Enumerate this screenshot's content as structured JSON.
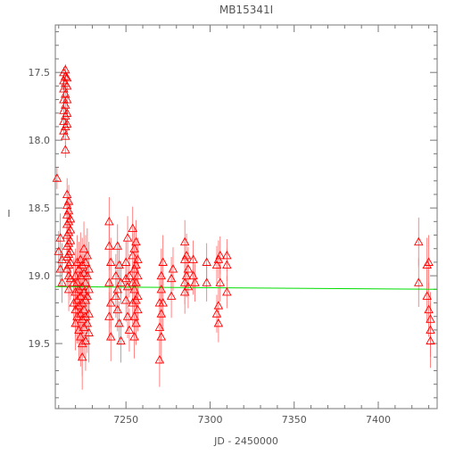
{
  "chart_data": {
    "type": "scatter",
    "title": "MB15341I",
    "xlabel": "JD - 2450000",
    "ylabel": "I",
    "xlim": [
      7208,
      7435
    ],
    "ylim": [
      19.98,
      17.15
    ],
    "y_inverted": true,
    "x_ticks": [
      7250,
      7300,
      7350,
      7400
    ],
    "x_tick_labels": [
      "7250",
      "7300",
      "7350",
      "7400"
    ],
    "y_ticks": [
      17.5,
      18.0,
      18.5,
      19.0,
      19.5
    ],
    "y_tick_labels": [
      "17.5",
      "18.0",
      "18.5",
      "19.0",
      "19.5"
    ],
    "grid": false,
    "marker": "open-triangle",
    "colors": {
      "points": "#ff0000",
      "errorbars": "#ff6666",
      "fit": "#00dd00",
      "axes": "#777777"
    },
    "fit_line": {
      "x": [
        7208,
        7435
      ],
      "y": [
        19.08,
        19.1
      ]
    },
    "series": [
      {
        "points": [
          [
            7209,
            18.28,
            0.08
          ],
          [
            7210,
            18.82,
            0.15
          ],
          [
            7211,
            18.72,
            0.18
          ],
          [
            7211,
            18.95,
            0.12
          ],
          [
            7212,
            19.05,
            0.15
          ],
          [
            7212,
            18.88,
            0.12
          ],
          [
            7213,
            17.5,
            0.04
          ],
          [
            7213,
            17.56,
            0.05
          ],
          [
            7213,
            17.62,
            0.05
          ],
          [
            7213,
            17.7,
            0.06
          ],
          [
            7213,
            17.78,
            0.06
          ],
          [
            7213,
            17.86,
            0.06
          ],
          [
            7213,
            17.93,
            0.06
          ],
          [
            7214,
            17.48,
            0.04
          ],
          [
            7214,
            17.53,
            0.04
          ],
          [
            7214,
            17.58,
            0.05
          ],
          [
            7214,
            17.66,
            0.05
          ],
          [
            7214,
            17.74,
            0.05
          ],
          [
            7214,
            17.82,
            0.06
          ],
          [
            7214,
            17.9,
            0.06
          ],
          [
            7214,
            17.97,
            0.06
          ],
          [
            7214,
            18.07,
            0.06
          ],
          [
            7215,
            17.54,
            0.05
          ],
          [
            7215,
            17.6,
            0.05
          ],
          [
            7215,
            17.7,
            0.05
          ],
          [
            7215,
            17.8,
            0.06
          ],
          [
            7215,
            17.88,
            0.06
          ],
          [
            7215,
            18.4,
            0.12
          ],
          [
            7215,
            18.48,
            0.12
          ],
          [
            7215,
            18.55,
            0.12
          ],
          [
            7215,
            18.62,
            0.13
          ],
          [
            7215,
            18.7,
            0.13
          ],
          [
            7215,
            18.78,
            0.14
          ],
          [
            7215,
            18.86,
            0.14
          ],
          [
            7215,
            18.95,
            0.15
          ],
          [
            7216,
            18.45,
            0.12
          ],
          [
            7216,
            18.52,
            0.12
          ],
          [
            7216,
            18.6,
            0.13
          ],
          [
            7216,
            18.68,
            0.13
          ],
          [
            7216,
            18.76,
            0.14
          ],
          [
            7216,
            18.84,
            0.14
          ],
          [
            7216,
            18.92,
            0.15
          ],
          [
            7216,
            19.0,
            0.15
          ],
          [
            7216,
            19.1,
            0.16
          ],
          [
            7217,
            18.58,
            0.13
          ],
          [
            7217,
            18.66,
            0.13
          ],
          [
            7217,
            18.74,
            0.14
          ],
          [
            7217,
            18.82,
            0.14
          ],
          [
            7217,
            18.9,
            0.15
          ],
          [
            7217,
            19.02,
            0.16
          ],
          [
            7219,
            19.05,
            0.18
          ],
          [
            7219,
            19.2,
            0.18
          ],
          [
            7220,
            19.0,
            0.2
          ],
          [
            7220,
            19.12,
            0.2
          ],
          [
            7220,
            19.25,
            0.2
          ],
          [
            7220,
            19.35,
            0.2
          ],
          [
            7221,
            18.9,
            0.2
          ],
          [
            7221,
            19.05,
            0.2
          ],
          [
            7221,
            19.18,
            0.2
          ],
          [
            7221,
            19.3,
            0.2
          ],
          [
            7222,
            18.95,
            0.2
          ],
          [
            7222,
            19.1,
            0.22
          ],
          [
            7222,
            19.22,
            0.22
          ],
          [
            7222,
            19.4,
            0.22
          ],
          [
            7223,
            18.88,
            0.2
          ],
          [
            7223,
            19.0,
            0.2
          ],
          [
            7223,
            19.15,
            0.22
          ],
          [
            7223,
            19.28,
            0.22
          ],
          [
            7223,
            19.45,
            0.22
          ],
          [
            7224,
            18.92,
            0.2
          ],
          [
            7224,
            19.08,
            0.22
          ],
          [
            7224,
            19.2,
            0.22
          ],
          [
            7224,
            19.32,
            0.22
          ],
          [
            7224,
            19.5,
            0.24
          ],
          [
            7224,
            19.6,
            0.24
          ],
          [
            7225,
            18.8,
            0.2
          ],
          [
            7225,
            18.98,
            0.2
          ],
          [
            7225,
            19.12,
            0.22
          ],
          [
            7225,
            19.25,
            0.22
          ],
          [
            7225,
            19.38,
            0.22
          ],
          [
            7226,
            18.9,
            0.2
          ],
          [
            7226,
            19.05,
            0.2
          ],
          [
            7226,
            19.18,
            0.22
          ],
          [
            7226,
            19.3,
            0.22
          ],
          [
            7226,
            19.48,
            0.22
          ],
          [
            7227,
            18.85,
            0.2
          ],
          [
            7227,
            19.0,
            0.2
          ],
          [
            7227,
            19.15,
            0.22
          ],
          [
            7227,
            19.35,
            0.22
          ],
          [
            7228,
            18.95,
            0.2
          ],
          [
            7228,
            19.1,
            0.2
          ],
          [
            7228,
            19.28,
            0.22
          ],
          [
            7228,
            19.42,
            0.22
          ],
          [
            7240,
            18.6,
            0.18
          ],
          [
            7240,
            18.78,
            0.18
          ],
          [
            7240,
            19.05,
            0.18
          ],
          [
            7240,
            19.3,
            0.18
          ],
          [
            7241,
            18.9,
            0.18
          ],
          [
            7241,
            19.2,
            0.18
          ],
          [
            7241,
            19.45,
            0.18
          ],
          [
            7244,
            19.0,
            0.16
          ],
          [
            7244,
            19.15,
            0.16
          ],
          [
            7245,
            18.78,
            0.16
          ],
          [
            7245,
            19.1,
            0.16
          ],
          [
            7245,
            19.25,
            0.16
          ],
          [
            7246,
            18.92,
            0.16
          ],
          [
            7246,
            19.35,
            0.16
          ],
          [
            7247,
            19.05,
            0.16
          ],
          [
            7247,
            19.48,
            0.16
          ],
          [
            7250,
            18.9,
            0.16
          ],
          [
            7250,
            19.02,
            0.16
          ],
          [
            7250,
            19.18,
            0.16
          ],
          [
            7251,
            18.72,
            0.16
          ],
          [
            7251,
            19.08,
            0.16
          ],
          [
            7251,
            19.3,
            0.16
          ],
          [
            7252,
            19.0,
            0.16
          ],
          [
            7252,
            19.4,
            0.16
          ],
          [
            7254,
            18.65,
            0.16
          ],
          [
            7254,
            18.85,
            0.16
          ],
          [
            7254,
            19.05,
            0.16
          ],
          [
            7254,
            19.2,
            0.16
          ],
          [
            7255,
            18.8,
            0.16
          ],
          [
            7255,
            18.95,
            0.16
          ],
          [
            7255,
            19.1,
            0.16
          ],
          [
            7255,
            19.3,
            0.16
          ],
          [
            7255,
            19.45,
            0.16
          ],
          [
            7256,
            18.75,
            0.16
          ],
          [
            7256,
            18.92,
            0.16
          ],
          [
            7256,
            19.05,
            0.16
          ],
          [
            7256,
            19.18,
            0.16
          ],
          [
            7256,
            19.35,
            0.16
          ],
          [
            7257,
            18.88,
            0.16
          ],
          [
            7257,
            19.0,
            0.16
          ],
          [
            7257,
            19.15,
            0.16
          ],
          [
            7257,
            19.25,
            0.16
          ],
          [
            7270,
            19.2,
            0.2
          ],
          [
            7270,
            19.38,
            0.2
          ],
          [
            7270,
            19.62,
            0.2
          ],
          [
            7271,
            19.0,
            0.2
          ],
          [
            7271,
            19.1,
            0.2
          ],
          [
            7271,
            19.28,
            0.2
          ],
          [
            7271,
            19.45,
            0.2
          ],
          [
            7272,
            18.9,
            0.2
          ],
          [
            7272,
            19.2,
            0.2
          ],
          [
            7277,
            19.02,
            0.16
          ],
          [
            7277,
            19.15,
            0.16
          ],
          [
            7278,
            18.95,
            0.16
          ],
          [
            7285,
            18.75,
            0.16
          ],
          [
            7285,
            18.88,
            0.16
          ],
          [
            7285,
            19.05,
            0.16
          ],
          [
            7285,
            19.12,
            0.16
          ],
          [
            7286,
            18.85,
            0.16
          ],
          [
            7286,
            19.0,
            0.16
          ],
          [
            7287,
            18.95,
            0.16
          ],
          [
            7287,
            19.08,
            0.16
          ],
          [
            7290,
            18.88,
            0.14
          ],
          [
            7290,
            19.0,
            0.14
          ],
          [
            7291,
            19.05,
            0.14
          ],
          [
            7298,
            18.9,
            0.14
          ],
          [
            7298,
            19.05,
            0.14
          ],
          [
            7304,
            18.92,
            0.14
          ],
          [
            7304,
            19.28,
            0.14
          ],
          [
            7305,
            18.88,
            0.14
          ],
          [
            7305,
            19.22,
            0.14
          ],
          [
            7305,
            19.35,
            0.14
          ],
          [
            7306,
            18.85,
            0.14
          ],
          [
            7306,
            19.05,
            0.14
          ],
          [
            7310,
            18.85,
            0.12
          ],
          [
            7310,
            18.92,
            0.12
          ],
          [
            7310,
            19.12,
            0.12
          ],
          [
            7424,
            18.75,
            0.18
          ],
          [
            7424,
            19.05,
            0.18
          ],
          [
            7429,
            18.92,
            0.2
          ],
          [
            7429,
            19.15,
            0.2
          ],
          [
            7430,
            18.9,
            0.2
          ],
          [
            7430,
            19.25,
            0.2
          ],
          [
            7431,
            19.32,
            0.2
          ],
          [
            7431,
            19.4,
            0.2
          ],
          [
            7431,
            19.48,
            0.2
          ]
        ]
      }
    ]
  }
}
